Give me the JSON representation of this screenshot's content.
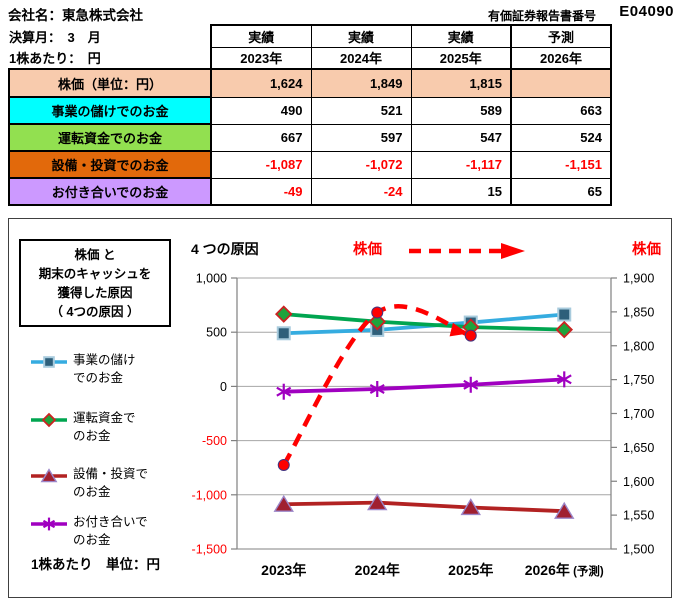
{
  "header": {
    "company": "会社名：東急株式会社",
    "report_label": "有価証券報告書番号",
    "report_number": "E04090",
    "fiscal_month": "決算月：　3　月",
    "per_share": "1株あたり：　円"
  },
  "table": {
    "column_groups": [
      "実績",
      "実績",
      "実績",
      "予測"
    ],
    "years": [
      "2023年",
      "2024年",
      "2025年",
      "2026年"
    ],
    "rows": [
      {
        "label": "株価（単位：円）",
        "bg": "#F8CBAD",
        "values": [
          "1,624",
          "1,849",
          "1,815",
          ""
        ]
      },
      {
        "label": "事業の儲けでのお金",
        "bg": "#00FFFF",
        "values": [
          "490",
          "521",
          "589",
          "663"
        ]
      },
      {
        "label": "運転資金でのお金",
        "bg": "#92E050",
        "values": [
          "667",
          "597",
          "547",
          "524"
        ]
      },
      {
        "label": "設備・投資でのお金",
        "bg": "#E2690B",
        "values": [
          "-1,087",
          "-1,072",
          "-1,117",
          "-1,151"
        ]
      },
      {
        "label": "お付き合いでのお金",
        "bg": "#CC99FF",
        "values": [
          "-49",
          "-24",
          "15",
          "65"
        ]
      }
    ]
  },
  "chart": {
    "legend_box_lines": [
      "株価 と",
      "期末のキャッシュを",
      "獲得した原因",
      "（ 4つの原因 ）"
    ],
    "title": "4 つの原因",
    "kabuka_label_left": "株価",
    "kabuka_label_right": "株価",
    "unit_note": "1株あたり　単位：円",
    "legend_items": [
      {
        "lines": [
          "事業の儲け",
          "でのお金"
        ]
      },
      {
        "lines": [
          "運転資金で",
          "のお金"
        ]
      },
      {
        "lines": [
          "設備・投資で",
          "のお金"
        ]
      },
      {
        "lines": [
          "お付き合いで",
          "のお金"
        ]
      }
    ]
  },
  "chart_data": {
    "type": "line",
    "categories": [
      "2023年",
      "2024年",
      "2025年",
      "2026年 (予測)"
    ],
    "left_axis": {
      "min": -1500,
      "max": 1000,
      "step": 500
    },
    "right_axis": {
      "min": 1500,
      "max": 1900,
      "step": 50
    },
    "grid": true,
    "legend_position": "left",
    "series": [
      {
        "name": "事業の儲けでのお金",
        "axis": "left",
        "values": [
          490,
          521,
          589,
          663
        ],
        "color": "#35ACE0",
        "marker": "square",
        "marker_fill": "#2E5F7A",
        "marker_stroke": "#A8CBDD"
      },
      {
        "name": "運転資金でのお金",
        "axis": "left",
        "values": [
          667,
          597,
          547,
          524
        ],
        "color": "#00A550",
        "marker": "diamond",
        "marker_fill": "#1EA33C",
        "marker_stroke": "#CC2222"
      },
      {
        "name": "設備・投資でのお金",
        "axis": "left",
        "values": [
          -1087,
          -1072,
          -1117,
          -1151
        ],
        "color": "#B22222",
        "marker": "triangle",
        "marker_fill": "#A02030",
        "marker_stroke": "#9B85C8"
      },
      {
        "name": "お付き合いでのお金",
        "axis": "left",
        "values": [
          -49,
          -24,
          15,
          65
        ],
        "color": "#A000C0",
        "marker": "asterisk",
        "marker_fill": "#A000C0",
        "marker_stroke": "#A000C0"
      },
      {
        "name": "株価",
        "axis": "right",
        "values": [
          1624,
          1849,
          1815,
          null
        ],
        "color": "#FF0000",
        "marker": "circle",
        "marker_fill": "#FF0000",
        "marker_stroke": "#44337F",
        "dashed": true,
        "arrow_end": true
      }
    ]
  },
  "colors": {
    "negative_text": "#FF0000",
    "accent_red": "#FF0000",
    "gridline": "#A6A6A6",
    "axis_line": "#808080"
  }
}
